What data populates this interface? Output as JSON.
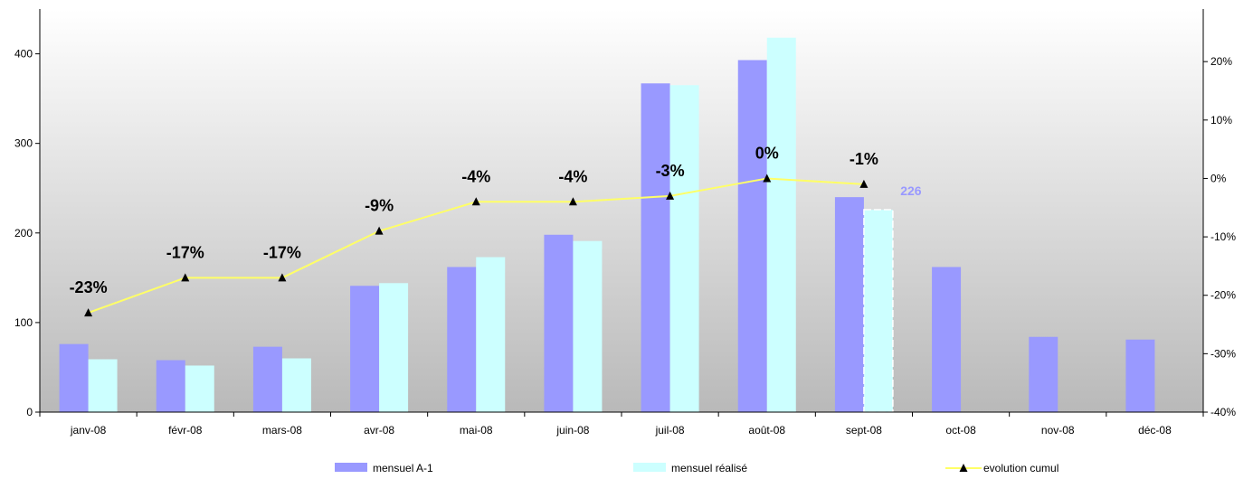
{
  "chart_data": {
    "type": "bar",
    "categories": [
      "janv-08",
      "févr-08",
      "mars-08",
      "avr-08",
      "mai-08",
      "juin-08",
      "juil-08",
      "août-08",
      "sept-08",
      "oct-08",
      "nov-08",
      "déc-08"
    ],
    "series": [
      {
        "name": "mensuel A-1",
        "type": "bar",
        "axis": "left",
        "color": "#9999FF",
        "values": [
          76,
          58,
          73,
          141,
          162,
          198,
          367,
          393,
          240,
          162,
          84,
          81
        ]
      },
      {
        "name": "mensuel réalisé",
        "type": "bar",
        "axis": "left",
        "color": "#CCFFFF",
        "values": [
          59,
          52,
          60,
          144,
          173,
          191,
          365,
          418,
          226,
          null,
          null,
          null
        ]
      },
      {
        "name": "evolution cumul",
        "type": "line",
        "axis": "right",
        "color": "#FFFF66",
        "marker": "triangle",
        "values": [
          -23,
          -17,
          -17,
          -9,
          -4,
          -4,
          -3,
          0,
          -1,
          null,
          null,
          null
        ]
      }
    ],
    "point_labels": [
      "-23%",
      "-17%",
      "-17%",
      "-9%",
      "-4%",
      "-4%",
      "-3%",
      "0%",
      "-1%"
    ],
    "highlight_label": {
      "category": "sept-08",
      "text": "226",
      "color": "#9999FF"
    },
    "y_left": {
      "lim": [
        0,
        450
      ],
      "ticks": [
        0,
        100,
        200,
        300,
        400
      ]
    },
    "y_right": {
      "lim": [
        -40,
        29
      ],
      "ticks": [
        -40,
        -30,
        -20,
        -10,
        0,
        10,
        20
      ],
      "tick_labels": [
        "-40%",
        "-30%",
        "-20%",
        "-10%",
        "0%",
        "10%",
        "20%"
      ]
    },
    "legend": {
      "placement": "bottom"
    },
    "grid": false,
    "background": "gradient white to gray"
  }
}
